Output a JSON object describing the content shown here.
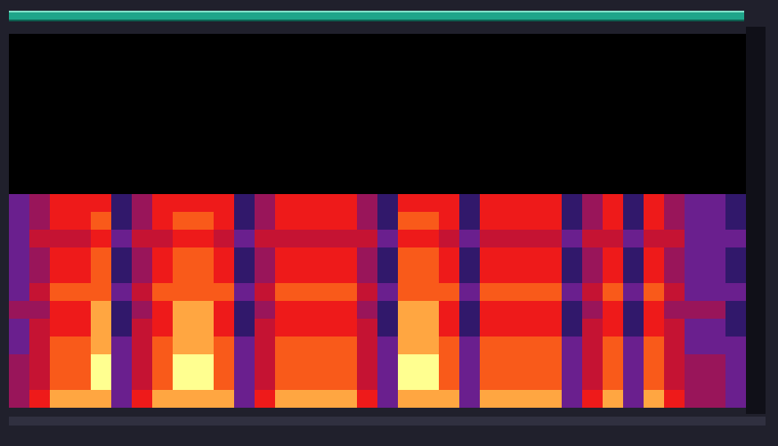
{
  "chart_data": {
    "type": "heatmap",
    "tick_labels": false,
    "zlim": [
      0,
      9
    ],
    "cells": [
      [
        0,
        0,
        0,
        0,
        0,
        0,
        0,
        0,
        0,
        0,
        0,
        0,
        0,
        0,
        0,
        0,
        0,
        0,
        0,
        0,
        0,
        0,
        0,
        0,
        0,
        0,
        0,
        0,
        0,
        0,
        0,
        0,
        0,
        0,
        0,
        0
      ],
      [
        0,
        0,
        0,
        0,
        0,
        0,
        0,
        0,
        0,
        0,
        0,
        0,
        0,
        0,
        0,
        0,
        0,
        0,
        0,
        0,
        0,
        0,
        0,
        0,
        0,
        0,
        0,
        0,
        0,
        0,
        0,
        0,
        0,
        0,
        0,
        0
      ],
      [
        0,
        0,
        0,
        0,
        0,
        0,
        0,
        0,
        0,
        0,
        0,
        0,
        0,
        0,
        0,
        0,
        0,
        0,
        0,
        0,
        0,
        0,
        0,
        0,
        0,
        0,
        0,
        0,
        0,
        0,
        0,
        0,
        0,
        0,
        0,
        0
      ],
      [
        0,
        0,
        0,
        0,
        0,
        0,
        0,
        0,
        0,
        0,
        0,
        0,
        0,
        0,
        0,
        0,
        0,
        0,
        0,
        0,
        0,
        0,
        0,
        0,
        0,
        0,
        0,
        0,
        0,
        0,
        0,
        0,
        0,
        0,
        0,
        0
      ],
      [
        0,
        0,
        0,
        0,
        0,
        0,
        0,
        0,
        0,
        0,
        0,
        0,
        0,
        0,
        0,
        0,
        0,
        0,
        0,
        0,
        0,
        0,
        0,
        0,
        0,
        0,
        0,
        0,
        0,
        0,
        0,
        0,
        0,
        0,
        0,
        0
      ],
      [
        0,
        0,
        0,
        0,
        0,
        0,
        0,
        0,
        0,
        0,
        0,
        0,
        0,
        0,
        0,
        0,
        0,
        0,
        0,
        0,
        0,
        0,
        0,
        0,
        0,
        0,
        0,
        0,
        0,
        0,
        0,
        0,
        0,
        0,
        0,
        0
      ],
      [
        0,
        0,
        0,
        0,
        0,
        0,
        0,
        0,
        0,
        0,
        0,
        0,
        0,
        0,
        0,
        0,
        0,
        0,
        0,
        0,
        0,
        0,
        0,
        0,
        0,
        0,
        0,
        0,
        0,
        0,
        0,
        0,
        0,
        0,
        0,
        0
      ],
      [
        0,
        0,
        0,
        0,
        0,
        0,
        0,
        0,
        0,
        0,
        0,
        0,
        0,
        0,
        0,
        0,
        0,
        0,
        0,
        0,
        0,
        0,
        0,
        0,
        0,
        0,
        0,
        0,
        0,
        0,
        0,
        0,
        0,
        0,
        0,
        0
      ],
      [
        0,
        0,
        0,
        0,
        0,
        0,
        0,
        0,
        0,
        0,
        0,
        0,
        0,
        0,
        0,
        0,
        0,
        0,
        0,
        0,
        0,
        0,
        0,
        0,
        0,
        0,
        0,
        0,
        0,
        0,
        0,
        0,
        0,
        0,
        0,
        0
      ],
      [
        3,
        4,
        6,
        6,
        6,
        2,
        4,
        6,
        6,
        6,
        6,
        2,
        4,
        6,
        6,
        6,
        6,
        4,
        2,
        6,
        6,
        6,
        2,
        6,
        6,
        6,
        6,
        2,
        4,
        6,
        2,
        6,
        4,
        3,
        3,
        2
      ],
      [
        3,
        4,
        6,
        6,
        7,
        2,
        4,
        6,
        7,
        7,
        6,
        2,
        4,
        6,
        6,
        6,
        6,
        4,
        2,
        7,
        7,
        6,
        2,
        6,
        6,
        6,
        6,
        2,
        4,
        6,
        2,
        6,
        4,
        3,
        3,
        2
      ],
      [
        3,
        5,
        5,
        5,
        6,
        3,
        5,
        5,
        6,
        6,
        5,
        3,
        5,
        5,
        5,
        5,
        5,
        5,
        3,
        6,
        6,
        5,
        3,
        5,
        5,
        5,
        5,
        3,
        5,
        5,
        3,
        5,
        5,
        3,
        3,
        3
      ],
      [
        3,
        4,
        6,
        6,
        7,
        2,
        4,
        6,
        7,
        7,
        6,
        2,
        4,
        6,
        6,
        6,
        6,
        4,
        2,
        7,
        7,
        6,
        2,
        6,
        6,
        6,
        6,
        2,
        4,
        6,
        2,
        6,
        4,
        3,
        3,
        2
      ],
      [
        3,
        4,
        6,
        6,
        7,
        2,
        4,
        6,
        7,
        7,
        6,
        2,
        4,
        6,
        6,
        6,
        6,
        4,
        2,
        7,
        7,
        6,
        2,
        6,
        6,
        6,
        6,
        2,
        4,
        6,
        2,
        6,
        4,
        3,
        3,
        2
      ],
      [
        3,
        5,
        7,
        7,
        7,
        3,
        5,
        7,
        7,
        7,
        7,
        3,
        5,
        7,
        7,
        7,
        7,
        5,
        3,
        7,
        7,
        7,
        3,
        7,
        7,
        7,
        7,
        3,
        5,
        7,
        3,
        7,
        5,
        3,
        3,
        3
      ],
      [
        4,
        4,
        6,
        6,
        8,
        2,
        4,
        6,
        8,
        8,
        6,
        2,
        4,
        6,
        6,
        6,
        6,
        4,
        2,
        8,
        8,
        6,
        2,
        6,
        6,
        6,
        6,
        2,
        4,
        6,
        2,
        6,
        4,
        4,
        4,
        2
      ],
      [
        3,
        5,
        6,
        6,
        8,
        2,
        5,
        6,
        8,
        8,
        6,
        2,
        5,
        6,
        6,
        6,
        6,
        5,
        2,
        8,
        8,
        6,
        2,
        6,
        6,
        6,
        6,
        2,
        5,
        6,
        2,
        6,
        5,
        3,
        3,
        2
      ],
      [
        3,
        5,
        7,
        7,
        8,
        3,
        5,
        7,
        8,
        8,
        7,
        3,
        5,
        7,
        7,
        7,
        7,
        5,
        3,
        8,
        8,
        7,
        3,
        7,
        7,
        7,
        7,
        3,
        5,
        7,
        3,
        7,
        5,
        3,
        3,
        3
      ],
      [
        4,
        5,
        7,
        7,
        9,
        3,
        5,
        7,
        9,
        9,
        7,
        3,
        5,
        7,
        7,
        7,
        7,
        5,
        3,
        9,
        9,
        7,
        3,
        7,
        7,
        7,
        7,
        3,
        5,
        7,
        3,
        7,
        5,
        4,
        4,
        3
      ],
      [
        4,
        5,
        7,
        7,
        9,
        3,
        5,
        7,
        9,
        9,
        7,
        3,
        5,
        7,
        7,
        7,
        7,
        5,
        3,
        9,
        9,
        7,
        3,
        7,
        7,
        7,
        7,
        3,
        5,
        7,
        3,
        7,
        5,
        4,
        4,
        3
      ],
      [
        4,
        6,
        8,
        8,
        8,
        3,
        6,
        8,
        8,
        8,
        8,
        3,
        6,
        8,
        8,
        8,
        8,
        6,
        3,
        8,
        8,
        8,
        3,
        8,
        8,
        8,
        8,
        3,
        6,
        8,
        3,
        8,
        6,
        4,
        4,
        3
      ]
    ]
  }
}
